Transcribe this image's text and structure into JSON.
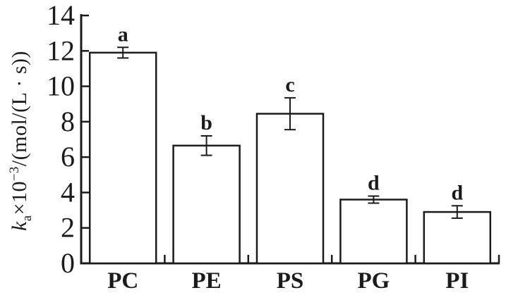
{
  "figure": {
    "background": "#ffffff",
    "ink_color": "#1b1b1b"
  },
  "chart_data": {
    "type": "bar",
    "categories": [
      "PC",
      "PE",
      "PS",
      "PG",
      "PI"
    ],
    "values": [
      11.9,
      6.65,
      8.45,
      3.6,
      2.9
    ],
    "errors": [
      0.3,
      0.55,
      0.9,
      0.2,
      0.35
    ],
    "sig_letters": [
      "a",
      "b",
      "c",
      "d",
      "d"
    ],
    "yticks": [
      0,
      2,
      4,
      6,
      8,
      10,
      12,
      14
    ],
    "ylim": [
      0,
      14
    ],
    "title": "",
    "xlabel": "",
    "ylabel": "ka×10−3/(mol/(L · s))",
    "ylabel_parts": {
      "k": "k",
      "sub": "a",
      "times": "×10",
      "exp": "−3",
      "rest": "/(mol/(L · s))"
    },
    "grid": false,
    "legend": null,
    "bar_fill": "#ffffff",
    "bar_stroke": "#1b1b1b"
  }
}
